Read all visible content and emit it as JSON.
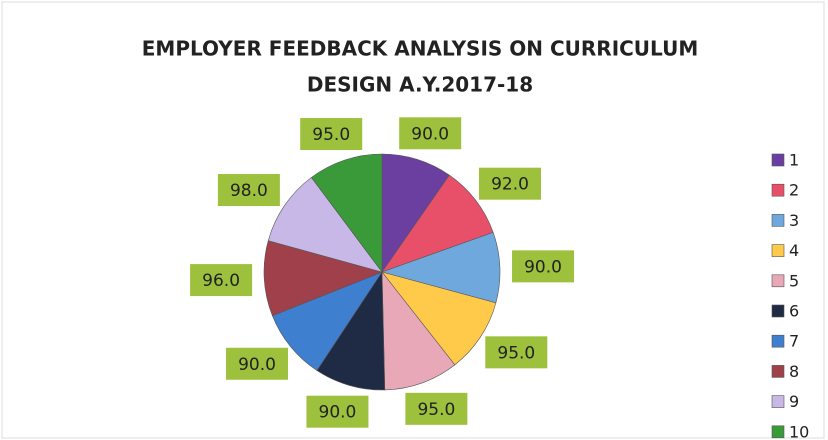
{
  "chart_data": {
    "type": "pie",
    "title": [
      "EMPLOYER FEEDBACK ANALYSIS ON CURRICULUM",
      "DESIGN A.Y.2017-18"
    ],
    "categories": [
      "1",
      "2",
      "3",
      "4",
      "5",
      "6",
      "7",
      "8",
      "9",
      "10"
    ],
    "values": [
      90,
      92,
      90,
      95,
      95,
      90,
      90,
      96,
      98,
      95
    ],
    "value_labels": [
      "90.0",
      "92.0",
      "90.0",
      "95.0",
      "95.0",
      "90.0",
      "90.0",
      "96.0",
      "98.0",
      "95.0"
    ],
    "colors": [
      "#6a3fa0",
      "#e8506a",
      "#6fa8dc",
      "#ffc94a",
      "#e8a8b8",
      "#1f2a44",
      "#3f7fcf",
      "#a0404a",
      "#c8b8e8",
      "#3a9a3a"
    ],
    "legend": "right"
  }
}
